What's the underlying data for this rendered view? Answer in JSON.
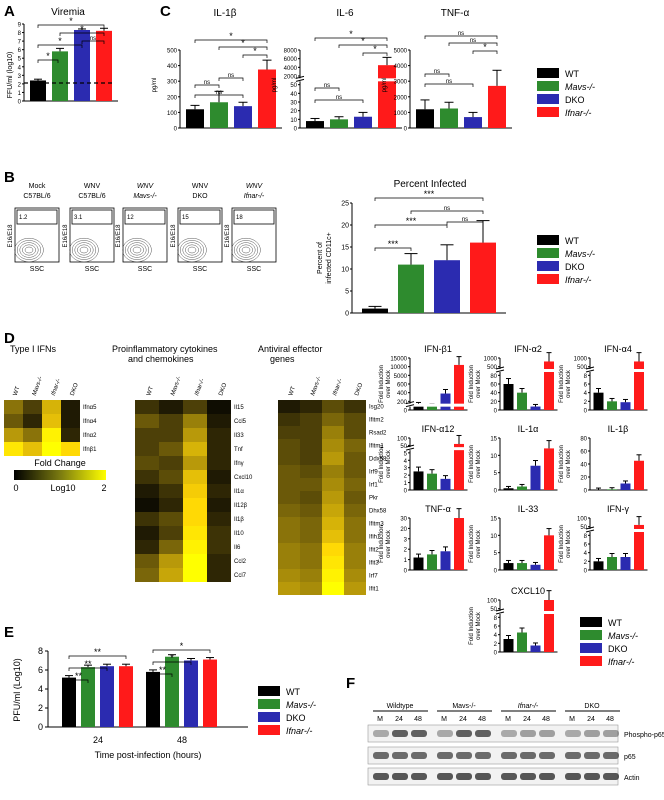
{
  "panel_labels": {
    "A": "A",
    "B": "B",
    "C": "C",
    "D": "D",
    "E": "E",
    "F": "F"
  },
  "colors": {
    "WT": "#000000",
    "Mavs": "#2e8b2e",
    "DKO": "#2b2bb0",
    "Ifnar": "#ff1a1a"
  },
  "legend": {
    "wt": "WT",
    "mavs": "Mavs-/-",
    "dko": "DKO",
    "ifnar": "Ifnar-/-"
  },
  "sig": {
    "star": "*",
    "ns": "ns",
    "triple": "***",
    "double": "**"
  },
  "panelA": {
    "chart_data": {
      "type": "bar",
      "title": "Viremia",
      "ylabel": "FFU/ml (log10)",
      "categories": [
        "WT",
        "Mavs-/-",
        "DKO",
        "Ifnar-/-"
      ],
      "values": [
        2.4,
        5.8,
        8.3,
        8.2
      ],
      "errors": [
        0.15,
        0.35,
        0.12,
        0.3
      ],
      "ylim": [
        0,
        9
      ],
      "yticks": [
        "0",
        "1",
        "2",
        "3",
        "4",
        "5",
        "6",
        "7",
        "8",
        "9"
      ],
      "threshold": 2.1
    }
  },
  "panelC": {
    "chart_data": [
      {
        "type": "bar",
        "title": "IL-1β",
        "ylabel": "pg/ml",
        "categories": [
          "WT",
          "Mavs-/-",
          "DKO",
          "Ifnar-/-"
        ],
        "values": [
          120,
          165,
          140,
          375
        ],
        "errors": [
          25,
          70,
          25,
          60
        ],
        "ylim": [
          0,
          500
        ],
        "yticks": [
          "0",
          "100",
          "200",
          "300",
          "400",
          "500"
        ]
      },
      {
        "type": "bar",
        "title": "IL-6",
        "ylabel": "pg/ml",
        "categories": [
          "WT",
          "Mavs-/-",
          "DKO",
          "Ifnar-/-"
        ],
        "values": [
          8,
          10,
          13,
          4500
        ],
        "errors": [
          3,
          3,
          5,
          1800
        ],
        "yticks": [
          "0",
          "10",
          "20",
          "30",
          "40",
          "50",
          "2000",
          "4000",
          "6000",
          "8000"
        ]
      },
      {
        "type": "bar",
        "title": "TNF-α",
        "ylabel": "pg/ml",
        "categories": [
          "WT",
          "Mavs-/-",
          "DKO",
          "Ifnar-/-"
        ],
        "values": [
          1200,
          1250,
          700,
          2700
        ],
        "errors": [
          600,
          400,
          300,
          1000
        ],
        "ylim": [
          0,
          5000
        ],
        "yticks": [
          "0",
          "1000",
          "2000",
          "3000",
          "4000",
          "5000"
        ]
      }
    ]
  },
  "panelB": {
    "flow": [
      {
        "label1": "Mock",
        "label2": "C57BL/6",
        "value": "1.2"
      },
      {
        "label1": "WNV",
        "label2": "C57BL/6",
        "value": "3.1"
      },
      {
        "label1": "WNV",
        "label2": "Mavs-/-",
        "value": "12"
      },
      {
        "label1": "WNV",
        "label2": "DKO",
        "value": "15"
      },
      {
        "label1": "WNV",
        "label2": "Ifnar-/-",
        "value": "18"
      }
    ],
    "flow_xlabel": "SSC",
    "flow_ylabel": "E16/E18",
    "chart_data": {
      "type": "bar",
      "title": "Percent Infected",
      "ylabel1": "Percent of",
      "ylabel2": "infected CD11c+",
      "categories": [
        "WT",
        "Mavs-/-",
        "DKO",
        "Ifnar-/-"
      ],
      "values": [
        1,
        11,
        12,
        16
      ],
      "errors": [
        0.5,
        2.5,
        3.5,
        5
      ],
      "ylim": [
        0,
        25
      ],
      "yticks": [
        "0",
        "5",
        "10",
        "15",
        "20",
        "25"
      ]
    }
  },
  "panelD": {
    "heat_titles": {
      "ifn": "Type I IFNs",
      "pro1": "Proinflammatory cytokines",
      "pro2": "and chemokines",
      "anti1": "Antiviral effector",
      "anti2": "genes"
    },
    "heat_cols": [
      "WT",
      "Mavs-/-",
      "Ifnar-/-",
      "DKO"
    ],
    "ifn_rows": [
      "Ifnα5",
      "Ifnα4",
      "Ifnα2",
      "Ifnβ1"
    ],
    "pro_rows": [
      "Il15",
      "Ccl5",
      "Il33",
      "Tnf",
      "Ifnγ",
      "Cxcl10",
      "Il1α",
      "Il12β",
      "Il1β",
      "Il10",
      "Il6",
      "Ccl2",
      "Ccl7"
    ],
    "anti_rows": [
      "Isg20",
      "Ifitm2",
      "Rsad2",
      "Ifitm1",
      "Ddx58",
      "Irf9",
      "Irf1",
      "Pkr",
      "Dhx58",
      "Ifitm3",
      "Ifih1",
      "Ifit2",
      "Ifit3",
      "Irf7",
      "Ifit1"
    ],
    "ifn_vals": [
      [
        0.9,
        0.5,
        1.4,
        0.2
      ],
      [
        0.7,
        0.3,
        1.5,
        0.2
      ],
      [
        1.2,
        0.9,
        1.9,
        0.3
      ],
      [
        1.8,
        1.5,
        2,
        1.7
      ]
    ],
    "pro_vals": [
      [
        0.4,
        0.2,
        0.5,
        0.1
      ],
      [
        0.7,
        0.5,
        1,
        0.2
      ],
      [
        0.5,
        0.5,
        1.2,
        0.3
      ],
      [
        0.5,
        0.7,
        1.4,
        0.3
      ],
      [
        0.6,
        0.5,
        1.2,
        0.3
      ],
      [
        0.4,
        0.6,
        1.5,
        0.2
      ],
      [
        0.2,
        0.4,
        1.6,
        0.3
      ],
      [
        0.1,
        0.3,
        1.7,
        0.2
      ],
      [
        0.4,
        0.6,
        1.7,
        0.3
      ],
      [
        0.2,
        0.5,
        1.8,
        0.4
      ],
      [
        0.3,
        0.8,
        1.9,
        0.4
      ],
      [
        0.7,
        1.2,
        2,
        0.3
      ],
      [
        0.8,
        1.3,
        2,
        0.3
      ]
    ],
    "anti_vals": [
      [
        0.2,
        0.3,
        0.6,
        0.4
      ],
      [
        0.4,
        0.5,
        0.8,
        0.6
      ],
      [
        0.5,
        0.5,
        1,
        0.6
      ],
      [
        0.6,
        0.5,
        1.1,
        0.8
      ],
      [
        0.6,
        0.5,
        1.2,
        0.7
      ],
      [
        0.7,
        0.6,
        1,
        0.7
      ],
      [
        0.7,
        0.7,
        1.1,
        0.8
      ],
      [
        0.7,
        0.6,
        1.2,
        0.7
      ],
      [
        0.8,
        0.7,
        1.3,
        0.8
      ],
      [
        0.9,
        0.8,
        1.4,
        0.9
      ],
      [
        0.9,
        0.8,
        1.5,
        0.9
      ],
      [
        1,
        0.9,
        1.7,
        1
      ],
      [
        1,
        0.9,
        1.8,
        1
      ],
      [
        1.1,
        1,
        1.9,
        1.1
      ],
      [
        1.2,
        1.1,
        2,
        1.2
      ]
    ],
    "scale_title": "Fold Change",
    "scale_min": "0",
    "scale_max": "2",
    "scale_unit": "Log10",
    "bar_ylabel1": "Fold Induction",
    "bar_ylabel2": "over Mock",
    "chart_data": [
      {
        "type": "bar",
        "title": "IFN-β1",
        "values": [
          120,
          90,
          380,
          11000
        ],
        "yticks": [
          "0",
          "200",
          "400",
          "600",
          "5000",
          "10000",
          "15000"
        ],
        "ylim": [
          0,
          15000
        ]
      },
      {
        "type": "bar",
        "title": "IFN-α2",
        "values": [
          60,
          40,
          8,
          800
        ],
        "yticks": [
          "0",
          "20",
          "40",
          "60",
          "80",
          "500",
          "1000"
        ],
        "ylim": [
          0,
          1000
        ]
      },
      {
        "type": "bar",
        "title": "IFN-α4",
        "values": [
          4,
          2,
          1.8,
          800
        ],
        "yticks": [
          "0",
          "2",
          "4",
          "6",
          "8",
          "500",
          "1000"
        ],
        "ylim": [
          0,
          1000
        ]
      },
      {
        "type": "bar",
        "title": "IFN-α12",
        "values": [
          2.5,
          2.2,
          1.5,
          60
        ],
        "yticks": [
          "0",
          "1",
          "2",
          "3",
          "4",
          "5",
          "50",
          "100"
        ],
        "ylim": [
          0,
          100
        ]
      },
      {
        "type": "bar",
        "title": "IL-1α",
        "values": [
          0.5,
          1,
          7,
          12
        ],
        "yticks": [
          "0",
          "5",
          "10",
          "15"
        ],
        "ylim": [
          0,
          15
        ]
      },
      {
        "type": "bar",
        "title": "IL-1β",
        "values": [
          0.5,
          1,
          10,
          45
        ],
        "yticks": [
          "0",
          "20",
          "40",
          "60",
          "80"
        ],
        "ylim": [
          0,
          80
        ]
      },
      {
        "type": "bar",
        "title": "TNF-α",
        "values": [
          1.2,
          1.5,
          1.8,
          30
        ],
        "yticks": [
          "0",
          "1",
          "2",
          "3",
          "20",
          "30"
        ],
        "ylim": [
          0,
          40
        ]
      },
      {
        "type": "bar",
        "title": "IL-33",
        "values": [
          2,
          2,
          1.5,
          10
        ],
        "yticks": [
          "0",
          "5",
          "10",
          "15"
        ],
        "ylim": [
          0,
          15
        ]
      },
      {
        "type": "bar",
        "title": "IFN-γ",
        "values": [
          2,
          3,
          3,
          60
        ],
        "yticks": [
          "0",
          "2",
          "4",
          "6",
          "8",
          "50",
          "100"
        ],
        "ylim": [
          0,
          100
        ]
      },
      {
        "type": "bar",
        "title": "CXCL10",
        "values": [
          3,
          4.5,
          1.5,
          100
        ],
        "yticks": [
          "0",
          "2",
          "4",
          "6",
          "8",
          "50",
          "100"
        ],
        "ylim": [
          0,
          100
        ]
      }
    ]
  },
  "panelE": {
    "chart_data": {
      "type": "bar",
      "ylabel": "PFU/ml (Log10)",
      "xlabel": "Time post-infection (hours)",
      "categories": [
        "24",
        "48"
      ],
      "series": [
        {
          "name": "WT",
          "values": [
            5.2,
            5.8
          ]
        },
        {
          "name": "Mavs-/-",
          "values": [
            6.3,
            7.4
          ]
        },
        {
          "name": "DKO",
          "values": [
            6.4,
            7.0
          ]
        },
        {
          "name": "Ifnar-/-",
          "values": [
            6.4,
            7.1
          ]
        }
      ],
      "ylim": [
        0,
        8
      ],
      "yticks": [
        "0",
        "2",
        "4",
        "6",
        "8"
      ]
    }
  },
  "panelF": {
    "groups": [
      "Wildtype",
      "Mavs-/-",
      "Ifnar-/-",
      "DKO"
    ],
    "lanes": [
      "M",
      "24",
      "48"
    ],
    "bands": [
      "Phospho-p65",
      "p65",
      "Actin"
    ]
  }
}
